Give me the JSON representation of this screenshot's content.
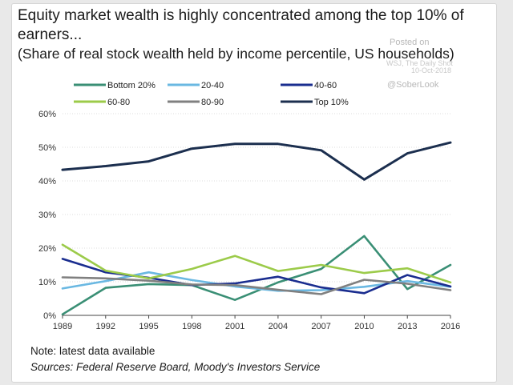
{
  "header": {
    "title": "Equity market wealth is highly concentrated among the top 10% of earners...",
    "subtitle": "(Share of real stock wealth held by income percentile, US households)"
  },
  "watermark": {
    "posted": "Posted on",
    "source": "WSJ, The Daily Shot",
    "date": "10-Oct-2018",
    "handle": "@SoberLook"
  },
  "footer": {
    "note": "Note: latest data available",
    "sources": "Sources: Federal Reserve Board, Moody's Investors Service"
  },
  "chart_data": {
    "type": "line",
    "x": [
      1989,
      1992,
      1995,
      1998,
      2001,
      2004,
      2007,
      2010,
      2013,
      2016
    ],
    "x_tick_labels": [
      "1989",
      "1992",
      "1995",
      "1998",
      "2001",
      "2004",
      "2007",
      "2010",
      "2013",
      "2016"
    ],
    "ylim": [
      0,
      60
    ],
    "y_ticks": [
      0,
      10,
      20,
      30,
      40,
      50,
      60
    ],
    "y_tick_labels": [
      "0%",
      "10%",
      "20%",
      "30%",
      "40%",
      "50%",
      "60%"
    ],
    "grid": "horizontal",
    "legend_position": "top",
    "series": [
      {
        "name": "Bottom 20%",
        "color": "#3a8f75",
        "values": [
          0.3,
          8.2,
          9.3,
          9.0,
          4.6,
          9.8,
          13.8,
          23.6,
          7.8,
          15.0
        ]
      },
      {
        "name": "20-40",
        "color": "#6ab8e2",
        "values": [
          8.0,
          10.2,
          12.8,
          10.5,
          8.6,
          7.3,
          7.5,
          8.5,
          10.2,
          8.5
        ]
      },
      {
        "name": "40-60",
        "color": "#1a2d8f",
        "values": [
          16.8,
          12.8,
          11.2,
          9.0,
          9.5,
          11.5,
          8.3,
          6.6,
          12.0,
          8.6
        ]
      },
      {
        "name": "60-80",
        "color": "#9ccb4a",
        "values": [
          21.0,
          13.3,
          11.0,
          13.8,
          17.7,
          13.2,
          15.0,
          12.6,
          14.0,
          9.8
        ]
      },
      {
        "name": "80-90",
        "color": "#808080",
        "values": [
          11.3,
          11.0,
          10.3,
          9.2,
          9.0,
          7.6,
          6.3,
          10.6,
          9.4,
          7.5
        ]
      },
      {
        "name": "Top 10%",
        "color": "#1c2f4f",
        "values": [
          43.3,
          44.4,
          45.8,
          49.6,
          51.0,
          51.0,
          49.1,
          40.4,
          48.2,
          51.4
        ]
      }
    ]
  }
}
